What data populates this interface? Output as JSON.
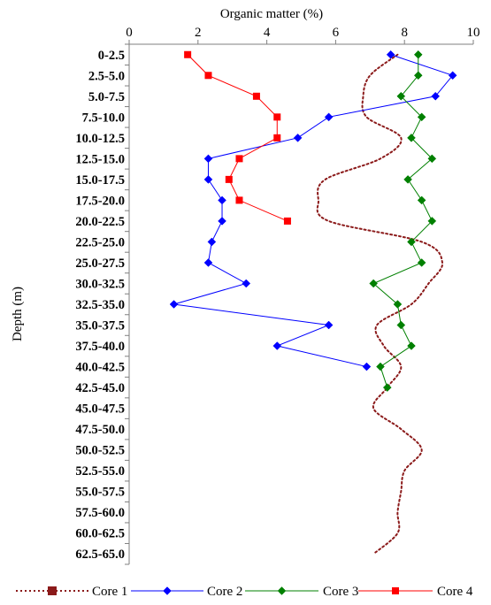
{
  "chart_data": {
    "type": "line",
    "xlabel": "Organic matter (%)",
    "ylabel": "Depth (m)",
    "xlim": [
      0,
      10
    ],
    "xticks": [
      0,
      2,
      4,
      6,
      8,
      10
    ],
    "x_axis_position": "top",
    "categories": [
      "0-2.5",
      "2.5-5.0",
      "5.0-7.5",
      "7.5-10.0",
      "10.0-12.5",
      "12.5-15.0",
      "15.0-17.5",
      "17.5-20.0",
      "20.0-22.5",
      "22.5-25.0",
      "25.0-27.5",
      "30.0-32.5",
      "32.5-35.0",
      "35.0-37.5",
      "37.5-40.0",
      "40.0-42.5",
      "42.5-45.0",
      "45.0-47.5",
      "47.5-50.0",
      "50.0-52.5",
      "52.5-55.0",
      "55.0-57.5",
      "57.5-60.0",
      "60.0-62.5",
      "62.5-65.0"
    ],
    "series": [
      {
        "name": "Core 1",
        "color": "#8B1A1A",
        "style": "dotted",
        "markers": false,
        "smooth": true,
        "values": [
          7.8,
          7.0,
          6.8,
          6.9,
          7.9,
          7.3,
          5.7,
          5.5,
          5.8,
          8.5,
          9.1,
          8.7,
          8.2,
          7.2,
          7.4,
          7.9,
          7.5,
          7.1,
          7.9,
          8.5,
          8.0,
          7.9,
          7.8,
          7.8,
          7.1
        ]
      },
      {
        "name": "Core 2",
        "color": "#0000FF",
        "marker": "diamond",
        "values": [
          7.6,
          9.4,
          8.9,
          5.8,
          4.9,
          2.3,
          2.3,
          2.7,
          2.7,
          2.4,
          2.3,
          3.4,
          1.3,
          5.8,
          4.3,
          6.9,
          null,
          null,
          null,
          null,
          null,
          null,
          null,
          null,
          null
        ]
      },
      {
        "name": "Core 3",
        "color": "#008000",
        "marker": "diamond",
        "values": [
          8.4,
          8.4,
          7.9,
          8.5,
          8.2,
          8.8,
          8.1,
          8.5,
          8.8,
          8.2,
          8.5,
          7.1,
          7.8,
          7.9,
          8.2,
          7.3,
          7.5,
          null,
          null,
          null,
          null,
          null,
          null,
          null,
          null
        ]
      },
      {
        "name": "Core 4",
        "color": "#FF0000",
        "marker": "square",
        "values": [
          1.7,
          2.3,
          3.7,
          4.3,
          4.3,
          3.2,
          2.9,
          3.2,
          4.6,
          null,
          null,
          null,
          null,
          null,
          null,
          null,
          null,
          null,
          null,
          null,
          null,
          null,
          null,
          null,
          null
        ]
      }
    ],
    "legend": {
      "position": "bottom"
    },
    "grid": false
  }
}
